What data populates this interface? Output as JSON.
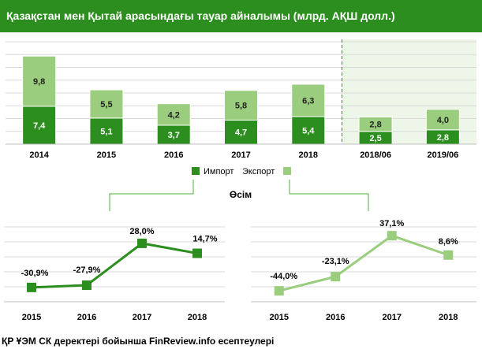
{
  "title": "Қазақстан мен Қытай арасындағы тауар айналымы (млрд. АҚШ долл.)",
  "colors": {
    "import": "#2c8e1e",
    "export": "#9acd7d",
    "highlight_bg": "#edf6e8",
    "title_bg": "#2c8e1e"
  },
  "legend": {
    "import": "Импорт",
    "export": "Экспорт"
  },
  "growth_label": "Өсім",
  "source": "ҚР ҰЭМ СК деректері бойынша FinReview.info есептеулері",
  "chart_data": [
    {
      "type": "bar",
      "stacked": true,
      "categories": [
        "2014",
        "2015",
        "2016",
        "2017",
        "2018",
        "2018/06",
        "2019/06"
      ],
      "series": [
        {
          "name": "Импорт",
          "values": [
            7.4,
            5.1,
            3.7,
            4.7,
            5.4,
            2.5,
            2.8
          ],
          "labels": [
            "7,4",
            "5,1",
            "3,7",
            "4,7",
            "5,4",
            "2,5",
            "2,8"
          ]
        },
        {
          "name": "Экспорт",
          "values": [
            9.8,
            5.5,
            4.2,
            5.8,
            6.3,
            2.8,
            4.0
          ],
          "labels": [
            "9,8",
            "5,5",
            "4,2",
            "5,8",
            "6,3",
            "2,8",
            "4,0"
          ]
        }
      ],
      "highlighted_categories": [
        "2018/06",
        "2019/06"
      ],
      "legend_position": "bottom"
    },
    {
      "type": "line",
      "series_name": "Импорт",
      "categories": [
        "2015",
        "2016",
        "2017",
        "2018"
      ],
      "values": [
        -30.9,
        -27.9,
        28.0,
        14.7
      ],
      "labels": [
        "-30,9%",
        "-27,9%",
        "28,0%",
        "14,7%"
      ],
      "grid": true
    },
    {
      "type": "line",
      "series_name": "Экспорт",
      "categories": [
        "2015",
        "2016",
        "2017",
        "2018"
      ],
      "values": [
        -44.0,
        -23.1,
        37.1,
        8.6
      ],
      "labels": [
        "-44,0%",
        "-23,1%",
        "37,1%",
        "8,6%"
      ],
      "grid": true
    }
  ]
}
